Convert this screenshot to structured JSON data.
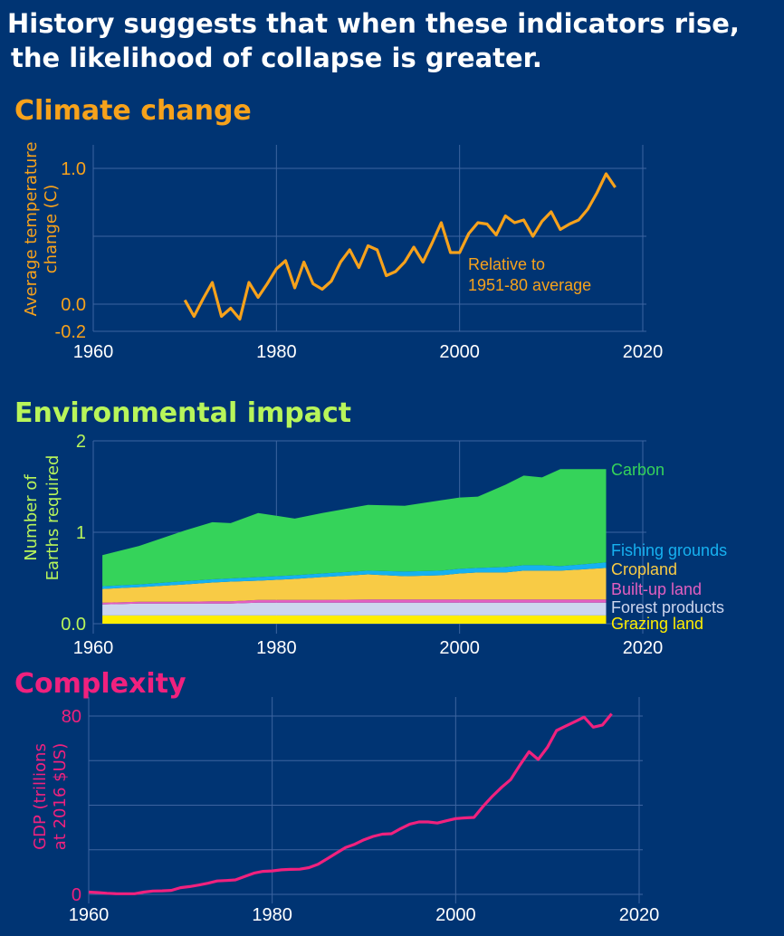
{
  "header": {
    "title_line1": "History suggests that when these indicators rise,",
    "title_line2": "the likelihood of collapse is greater."
  },
  "colors": {
    "background": "#003473",
    "climate": "#f7a21b",
    "environment": "#b8f55a",
    "complexity": "#f0217e",
    "grid": "#3d64a0"
  },
  "chart_data": [
    {
      "type": "line",
      "title": "Climate change",
      "ylabel": [
        "Average temperature",
        "change (C)"
      ],
      "annotation": [
        "Relative to",
        "1951-80 average"
      ],
      "xlim": [
        1960,
        2020
      ],
      "ylim": [
        -0.2,
        1.0
      ],
      "xticks": [
        "1960",
        "1980",
        "2000",
        "2020"
      ],
      "yticks": [
        "1.0",
        "0.0",
        "-0.2"
      ],
      "ytick_values": [
        1.0,
        0.0,
        -0.2
      ],
      "ygrid": [
        -0.2,
        0.0,
        0.5,
        1.0
      ],
      "grid": true,
      "color": "#f7a21b",
      "x": [
        1970,
        1971,
        1972,
        1973,
        1974,
        1975,
        1976,
        1977,
        1978,
        1979,
        1980,
        1981,
        1982,
        1983,
        1984,
        1985,
        1986,
        1987,
        1988,
        1989,
        1990,
        1991,
        1992,
        1993,
        1994,
        1995,
        1996,
        1997,
        1998,
        1999,
        2000,
        2001,
        2002,
        2003,
        2004,
        2005,
        2006,
        2007,
        2008,
        2009,
        2010,
        2011,
        2012,
        2013,
        2014,
        2015,
        2016,
        2017
      ],
      "y": [
        0.03,
        -0.09,
        0.04,
        0.16,
        -0.09,
        -0.03,
        -0.11,
        0.16,
        0.05,
        0.15,
        0.26,
        0.32,
        0.12,
        0.31,
        0.15,
        0.11,
        0.17,
        0.31,
        0.4,
        0.27,
        0.43,
        0.4,
        0.21,
        0.24,
        0.31,
        0.42,
        0.31,
        0.45,
        0.6,
        0.38,
        0.38,
        0.52,
        0.6,
        0.59,
        0.51,
        0.65,
        0.6,
        0.62,
        0.5,
        0.61,
        0.68,
        0.55,
        0.59,
        0.62,
        0.7,
        0.82,
        0.96,
        0.86
      ]
    },
    {
      "type": "area",
      "stacked": true,
      "title": "Environmental impact",
      "ylabel": [
        "Number of",
        "Earths required"
      ],
      "xlim": [
        1960,
        2020
      ],
      "ylim": [
        0,
        2
      ],
      "xticks": [
        "1960",
        "1980",
        "2000",
        "2020"
      ],
      "yticks": [
        "2",
        "1",
        "0.0"
      ],
      "ytick_values": [
        2,
        1,
        0
      ],
      "grid": true,
      "legend_placement": "right, inline at series end",
      "x": [
        1961,
        1965,
        1970,
        1973,
        1975,
        1978,
        1980,
        1982,
        1985,
        1990,
        1994,
        1998,
        2000,
        2002,
        2005,
        2007,
        2009,
        2011,
        2016
      ],
      "series": [
        {
          "name": "Grazing land",
          "color": "#ffee00",
          "values": [
            0.09,
            0.09,
            0.09,
            0.09,
            0.09,
            0.09,
            0.09,
            0.09,
            0.09,
            0.09,
            0.09,
            0.09,
            0.09,
            0.09,
            0.09,
            0.09,
            0.09,
            0.09,
            0.09
          ]
        },
        {
          "name": "Forest products",
          "color": "#cdd6ee",
          "values": [
            0.12,
            0.13,
            0.13,
            0.13,
            0.13,
            0.14,
            0.14,
            0.14,
            0.14,
            0.14,
            0.14,
            0.14,
            0.14,
            0.14,
            0.14,
            0.14,
            0.14,
            0.14,
            0.14
          ]
        },
        {
          "name": "Built-up land",
          "color": "#e35fc0",
          "values": [
            0.02,
            0.02,
            0.02,
            0.025,
            0.025,
            0.03,
            0.03,
            0.03,
            0.03,
            0.035,
            0.035,
            0.035,
            0.035,
            0.035,
            0.035,
            0.035,
            0.035,
            0.035,
            0.035
          ]
        },
        {
          "name": "Cropland",
          "color": "#f8cb45",
          "values": [
            0.15,
            0.16,
            0.19,
            0.205,
            0.215,
            0.21,
            0.22,
            0.23,
            0.25,
            0.275,
            0.255,
            0.265,
            0.285,
            0.295,
            0.295,
            0.315,
            0.315,
            0.315,
            0.345
          ]
        },
        {
          "name": "Fishing grounds",
          "color": "#16b1f0",
          "values": [
            0.03,
            0.03,
            0.035,
            0.035,
            0.035,
            0.04,
            0.04,
            0.04,
            0.04,
            0.04,
            0.05,
            0.05,
            0.05,
            0.05,
            0.06,
            0.06,
            0.06,
            0.05,
            0.06
          ]
        },
        {
          "name": "Carbon",
          "color": "#35d35a",
          "values": [
            0.34,
            0.42,
            0.555,
            0.625,
            0.605,
            0.7,
            0.66,
            0.62,
            0.66,
            0.72,
            0.72,
            0.77,
            0.78,
            0.78,
            0.9,
            0.98,
            0.96,
            1.06,
            1.02
          ]
        }
      ]
    },
    {
      "type": "line",
      "title": "Complexity",
      "ylabel": [
        "GDP (trillions",
        "at 2016 $US)"
      ],
      "xlim": [
        1960,
        2020
      ],
      "ylim": [
        0,
        80
      ],
      "xticks": [
        "1960",
        "1980",
        "2000",
        "2020"
      ],
      "yticks": [
        "80",
        "0"
      ],
      "ytick_values": [
        80,
        0
      ],
      "ygrid": [
        0,
        20,
        40,
        60,
        80
      ],
      "grid": true,
      "color": "#f0217e",
      "x": [
        1960,
        1961,
        1962,
        1963,
        1964,
        1965,
        1966,
        1967,
        1968,
        1969,
        1970,
        1971,
        1972,
        1973,
        1974,
        1975,
        1976,
        1977,
        1978,
        1979,
        1980,
        1981,
        1982,
        1983,
        1984,
        1985,
        1986,
        1987,
        1988,
        1989,
        1990,
        1991,
        1992,
        1993,
        1994,
        1995,
        1996,
        1997,
        1998,
        1999,
        2000,
        2001,
        2002,
        2003,
        2004,
        2005,
        2006,
        2007,
        2008,
        2009,
        2010,
        2011,
        2012,
        2013,
        2014,
        2015,
        2016,
        2017
      ],
      "y": [
        1,
        0.8,
        0.5,
        0.3,
        0.3,
        0.3,
        1,
        1.5,
        1.6,
        1.8,
        3,
        3.5,
        4.2,
        5,
        6,
        6.2,
        6.5,
        8,
        9.5,
        10.3,
        10.5,
        11,
        11.2,
        11.3,
        12,
        13.5,
        16,
        18.5,
        21,
        22.5,
        24.5,
        26,
        27,
        27.2,
        29.5,
        31.5,
        32.5,
        32.5,
        32,
        33,
        34,
        34.3,
        34.5,
        39.5,
        44,
        48,
        51.5,
        58,
        64,
        60.5,
        66,
        73.5,
        75.5,
        77.5,
        79.5,
        75,
        76,
        81
      ]
    }
  ]
}
